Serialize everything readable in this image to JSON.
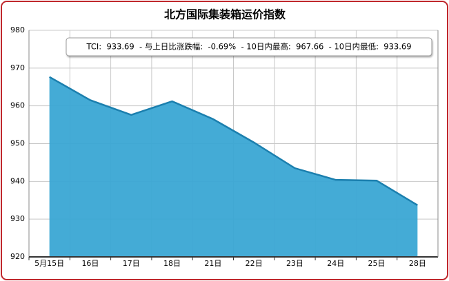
{
  "chart_data": {
    "type": "area",
    "title": "北方国际集装箱运价指数",
    "annotation": "TCI:  933.69  - 与上日比涨跌幅:  -0.69%  - 10日内最高:  967.66  - 10日内最低:  933.69",
    "categories": [
      "5月15日",
      "16日",
      "17日",
      "18日",
      "21日",
      "22日",
      "23日",
      "24日",
      "25日",
      "28日"
    ],
    "series": [
      {
        "name": "TCI",
        "color": "#3aa6d4",
        "values": [
          967.66,
          961.5,
          957.6,
          961.2,
          956.5,
          950.3,
          943.5,
          940.4,
          940.2,
          933.69
        ]
      }
    ],
    "ylim": [
      920,
      980
    ],
    "yticks": [
      920,
      930,
      940,
      950,
      960,
      970,
      980
    ],
    "grid": true
  }
}
